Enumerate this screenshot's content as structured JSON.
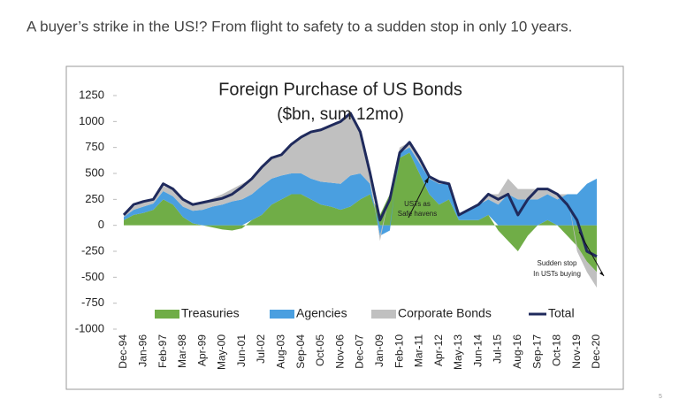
{
  "slide": {
    "title": "A buyer’s strike in the US!? From flight to safety to a sudden stop in only 10 years.",
    "page_number": "5"
  },
  "chart_data": {
    "type": "stacked-area",
    "title": "Foreign Purchase of US Bonds",
    "subtitle": "($bn, sum 12mo)",
    "categories": [
      "Dec-94",
      null,
      "Jan-96",
      null,
      "Feb-97",
      null,
      "Mar-98",
      null,
      "Apr-99",
      null,
      "May-00",
      null,
      "Jun-01",
      null,
      "Jul-02",
      null,
      "Aug-03",
      null,
      "Sep-04",
      null,
      "Oct-05",
      null,
      "Nov-06",
      null,
      "Dec-07",
      null,
      "Jan-09",
      null,
      "Feb-10",
      null,
      "Mar-11",
      null,
      "Apr-12",
      null,
      "May-13",
      null,
      "Jun-14",
      null,
      "Jul-15",
      null,
      "Aug-16",
      null,
      "Sep-17",
      null,
      "Oct-18",
      null,
      "Nov-19",
      null,
      "Dec-20"
    ],
    "series": [
      {
        "name": "Treasuries",
        "color": "#70ad47",
        "values": [
          50,
          100,
          120,
          150,
          250,
          200,
          80,
          20,
          0,
          -20,
          -40,
          -50,
          -30,
          50,
          100,
          200,
          250,
          300,
          300,
          250,
          200,
          180,
          150,
          180,
          250,
          300,
          100,
          300,
          650,
          700,
          500,
          300,
          200,
          250,
          50,
          50,
          50,
          100,
          -50,
          -150,
          -250,
          -100,
          0,
          50,
          0,
          -100,
          -200,
          -350,
          -450
        ]
      },
      {
        "name": "Agencies",
        "color": "#4a9fe0",
        "values": [
          30,
          50,
          60,
          60,
          80,
          80,
          100,
          120,
          150,
          180,
          200,
          230,
          250,
          250,
          280,
          250,
          230,
          200,
          200,
          200,
          220,
          230,
          250,
          300,
          250,
          100,
          -100,
          -50,
          50,
          50,
          100,
          150,
          200,
          150,
          50,
          100,
          150,
          150,
          200,
          300,
          250,
          250,
          250,
          250,
          250,
          300,
          300,
          400,
          450
        ]
      },
      {
        "name": "Corporate Bonds",
        "color": "#c0c0c0",
        "values": [
          20,
          30,
          40,
          40,
          50,
          60,
          80,
          60,
          70,
          80,
          100,
          120,
          150,
          150,
          180,
          200,
          200,
          280,
          350,
          450,
          500,
          550,
          600,
          600,
          400,
          100,
          -50,
          0,
          50,
          50,
          50,
          20,
          20,
          0,
          0,
          0,
          0,
          50,
          100,
          150,
          100,
          100,
          100,
          50,
          50,
          0,
          -50,
          -100,
          -150
        ]
      },
      {
        "name": "Total",
        "color": "#1f2a5c",
        "line": true,
        "values": [
          100,
          200,
          230,
          250,
          400,
          350,
          250,
          200,
          220,
          240,
          260,
          300,
          370,
          450,
          560,
          650,
          680,
          780,
          850,
          900,
          920,
          960,
          1000,
          1080,
          900,
          500,
          50,
          250,
          700,
          800,
          650,
          470,
          420,
          400,
          100,
          150,
          200,
          300,
          250,
          300,
          100,
          250,
          350,
          350,
          300,
          200,
          50,
          -250,
          -300
        ]
      }
    ],
    "ylim": [
      -1000,
      1250
    ],
    "yticks": [
      1250,
      1000,
      750,
      500,
      250,
      0,
      -250,
      -500,
      -750,
      -1000
    ],
    "annotations": [
      [
        "USTs as",
        "Safe havens"
      ],
      [
        "Sudden stop",
        "In USTs buying"
      ]
    ],
    "legend": "bottom"
  }
}
